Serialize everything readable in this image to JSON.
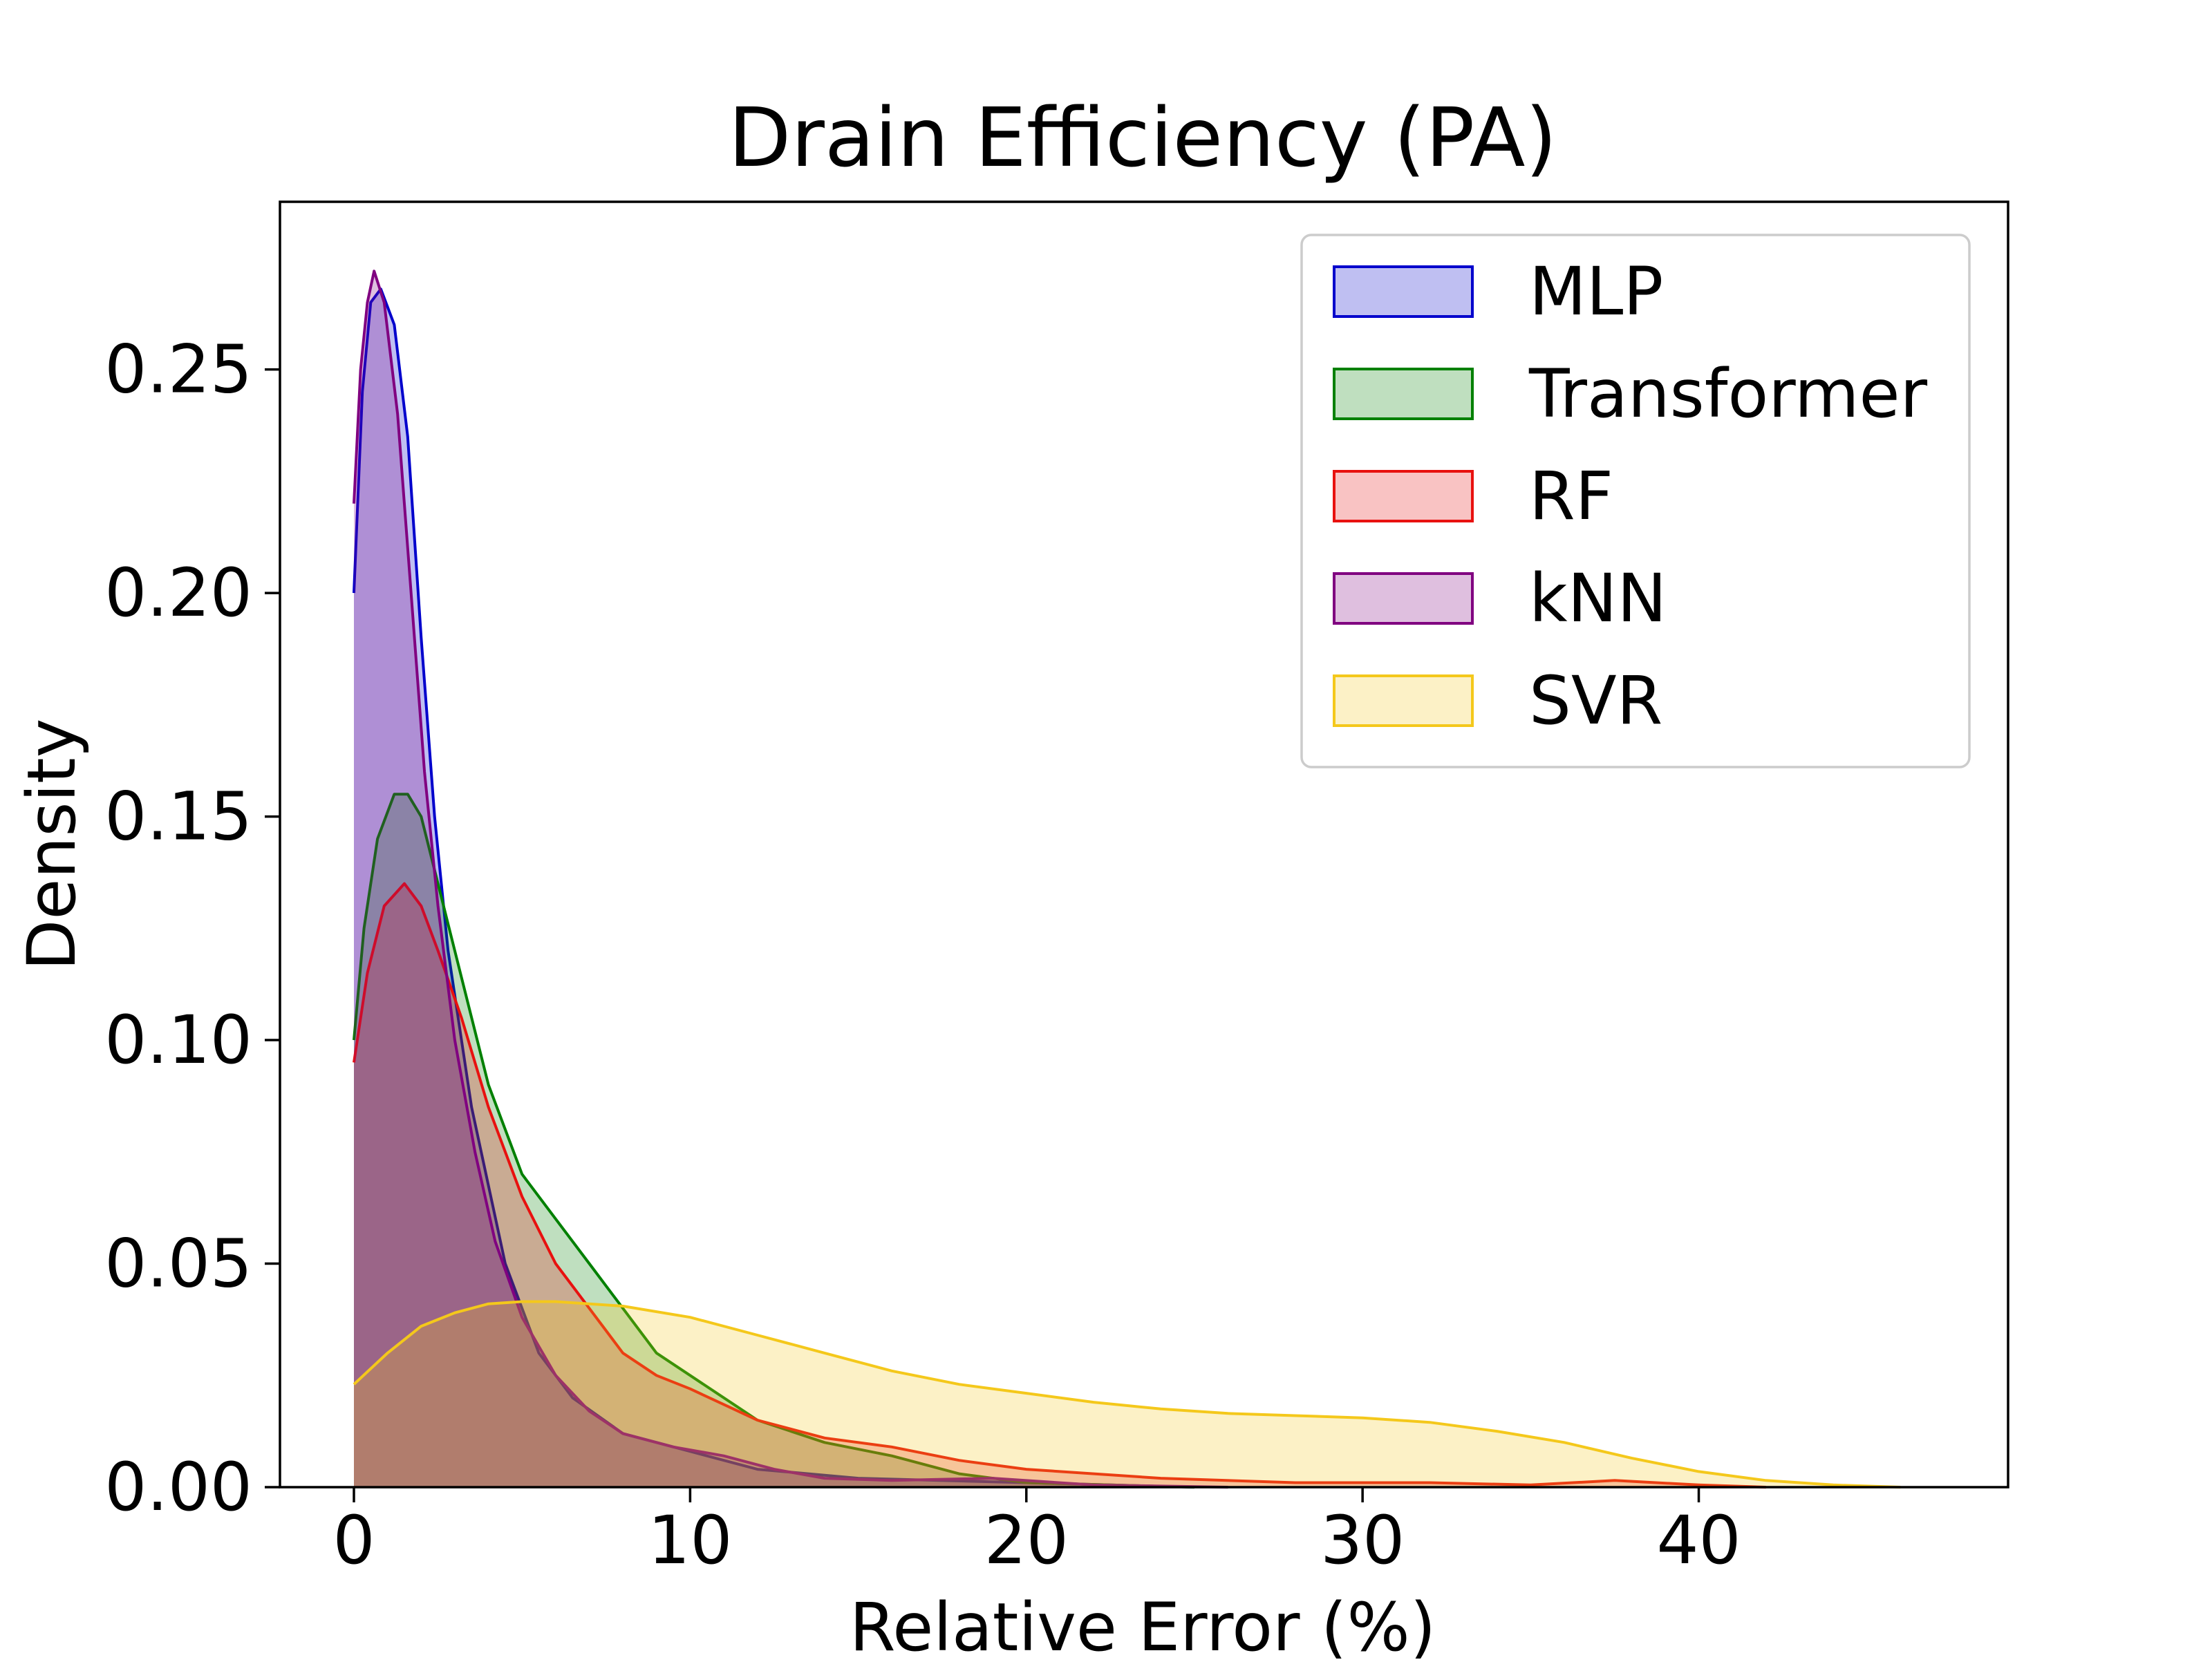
{
  "chart_data": {
    "type": "area",
    "title": "Drain Efficiency (PA)",
    "xlabel": "Relative Error (%)",
    "ylabel": "Density",
    "xlim": [
      -2.2,
      49.2
    ],
    "ylim": [
      0,
      0.2875
    ],
    "xticks": [
      0,
      10,
      20,
      30,
      40
    ],
    "xtick_labels": [
      "0",
      "10",
      "20",
      "30",
      "40"
    ],
    "yticks": [
      0,
      0.05,
      0.1,
      0.15,
      0.2,
      0.25
    ],
    "ytick_labels": [
      "0.00",
      "0.05",
      "0.10",
      "0.15",
      "0.20",
      "0.25"
    ],
    "grid": false,
    "legend_position": "top-right",
    "series": [
      {
        "name": "MLP",
        "color": "#0000cc",
        "points": [
          [
            0,
            0.2
          ],
          [
            0.25,
            0.245
          ],
          [
            0.5,
            0.265
          ],
          [
            0.8,
            0.268
          ],
          [
            1.2,
            0.26
          ],
          [
            1.6,
            0.235
          ],
          [
            2.0,
            0.19
          ],
          [
            2.4,
            0.15
          ],
          [
            2.8,
            0.12
          ],
          [
            3.5,
            0.085
          ],
          [
            4.5,
            0.05
          ],
          [
            5.5,
            0.03
          ],
          [
            6.5,
            0.02
          ],
          [
            8,
            0.012
          ],
          [
            10,
            0.008
          ],
          [
            12,
            0.004
          ],
          [
            15,
            0.002
          ],
          [
            20,
            0.001
          ],
          [
            25,
            0
          ]
        ]
      },
      {
        "name": "Transformer",
        "color": "#008000",
        "points": [
          [
            0,
            0.1
          ],
          [
            0.3,
            0.125
          ],
          [
            0.7,
            0.145
          ],
          [
            1.2,
            0.155
          ],
          [
            1.6,
            0.155
          ],
          [
            2.0,
            0.15
          ],
          [
            2.5,
            0.135
          ],
          [
            3.0,
            0.12
          ],
          [
            4.0,
            0.09
          ],
          [
            5.0,
            0.07
          ],
          [
            6.0,
            0.06
          ],
          [
            7.0,
            0.05
          ],
          [
            8.0,
            0.04
          ],
          [
            9.0,
            0.03
          ],
          [
            10,
            0.025
          ],
          [
            12,
            0.015
          ],
          [
            14,
            0.01
          ],
          [
            16,
            0.007
          ],
          [
            18,
            0.003
          ],
          [
            20,
            0.001
          ],
          [
            25,
            0
          ]
        ]
      },
      {
        "name": "RF",
        "color": "#e8110f",
        "points": [
          [
            0,
            0.095
          ],
          [
            0.4,
            0.115
          ],
          [
            0.9,
            0.13
          ],
          [
            1.5,
            0.135
          ],
          [
            2.0,
            0.13
          ],
          [
            2.5,
            0.12
          ],
          [
            3.2,
            0.105
          ],
          [
            4.0,
            0.085
          ],
          [
            5.0,
            0.065
          ],
          [
            6.0,
            0.05
          ],
          [
            7.0,
            0.04
          ],
          [
            8.0,
            0.03
          ],
          [
            9.0,
            0.025
          ],
          [
            10,
            0.022
          ],
          [
            12,
            0.015
          ],
          [
            14,
            0.011
          ],
          [
            16,
            0.009
          ],
          [
            18,
            0.006
          ],
          [
            20,
            0.004
          ],
          [
            24,
            0.002
          ],
          [
            28,
            0.001
          ],
          [
            32,
            0.001
          ],
          [
            35,
            0.0005
          ],
          [
            37.5,
            0.0015
          ],
          [
            40,
            0.0005
          ],
          [
            42,
            0
          ]
        ]
      },
      {
        "name": "kNN",
        "color": "#800080",
        "points": [
          [
            0,
            0.22
          ],
          [
            0.2,
            0.25
          ],
          [
            0.4,
            0.265
          ],
          [
            0.6,
            0.272
          ],
          [
            0.9,
            0.265
          ],
          [
            1.3,
            0.24
          ],
          [
            1.7,
            0.2
          ],
          [
            2.1,
            0.16
          ],
          [
            2.5,
            0.13
          ],
          [
            3.0,
            0.1
          ],
          [
            3.6,
            0.075
          ],
          [
            4.2,
            0.055
          ],
          [
            5.0,
            0.038
          ],
          [
            6.0,
            0.025
          ],
          [
            7.0,
            0.017
          ],
          [
            8.0,
            0.012
          ],
          [
            9.5,
            0.009
          ],
          [
            11,
            0.007
          ],
          [
            12.5,
            0.004
          ],
          [
            14,
            0.002
          ],
          [
            16,
            0.0015
          ],
          [
            19,
            0.002
          ],
          [
            22,
            0.0005
          ],
          [
            26,
            0
          ]
        ]
      },
      {
        "name": "SVR",
        "color": "#f4c81b",
        "points": [
          [
            0,
            0.023
          ],
          [
            1,
            0.03
          ],
          [
            2,
            0.036
          ],
          [
            3,
            0.039
          ],
          [
            4,
            0.041
          ],
          [
            5,
            0.0415
          ],
          [
            6,
            0.0415
          ],
          [
            8,
            0.0405
          ],
          [
            10,
            0.038
          ],
          [
            12,
            0.034
          ],
          [
            14,
            0.03
          ],
          [
            16,
            0.026
          ],
          [
            18,
            0.023
          ],
          [
            20,
            0.021
          ],
          [
            22,
            0.019
          ],
          [
            24,
            0.0175
          ],
          [
            26,
            0.0165
          ],
          [
            28,
            0.016
          ],
          [
            30,
            0.0155
          ],
          [
            32,
            0.0145
          ],
          [
            34,
            0.0125
          ],
          [
            36,
            0.01
          ],
          [
            38,
            0.0065
          ],
          [
            40,
            0.0035
          ],
          [
            42,
            0.0015
          ],
          [
            44,
            0.0005
          ],
          [
            46,
            0
          ]
        ]
      }
    ]
  }
}
